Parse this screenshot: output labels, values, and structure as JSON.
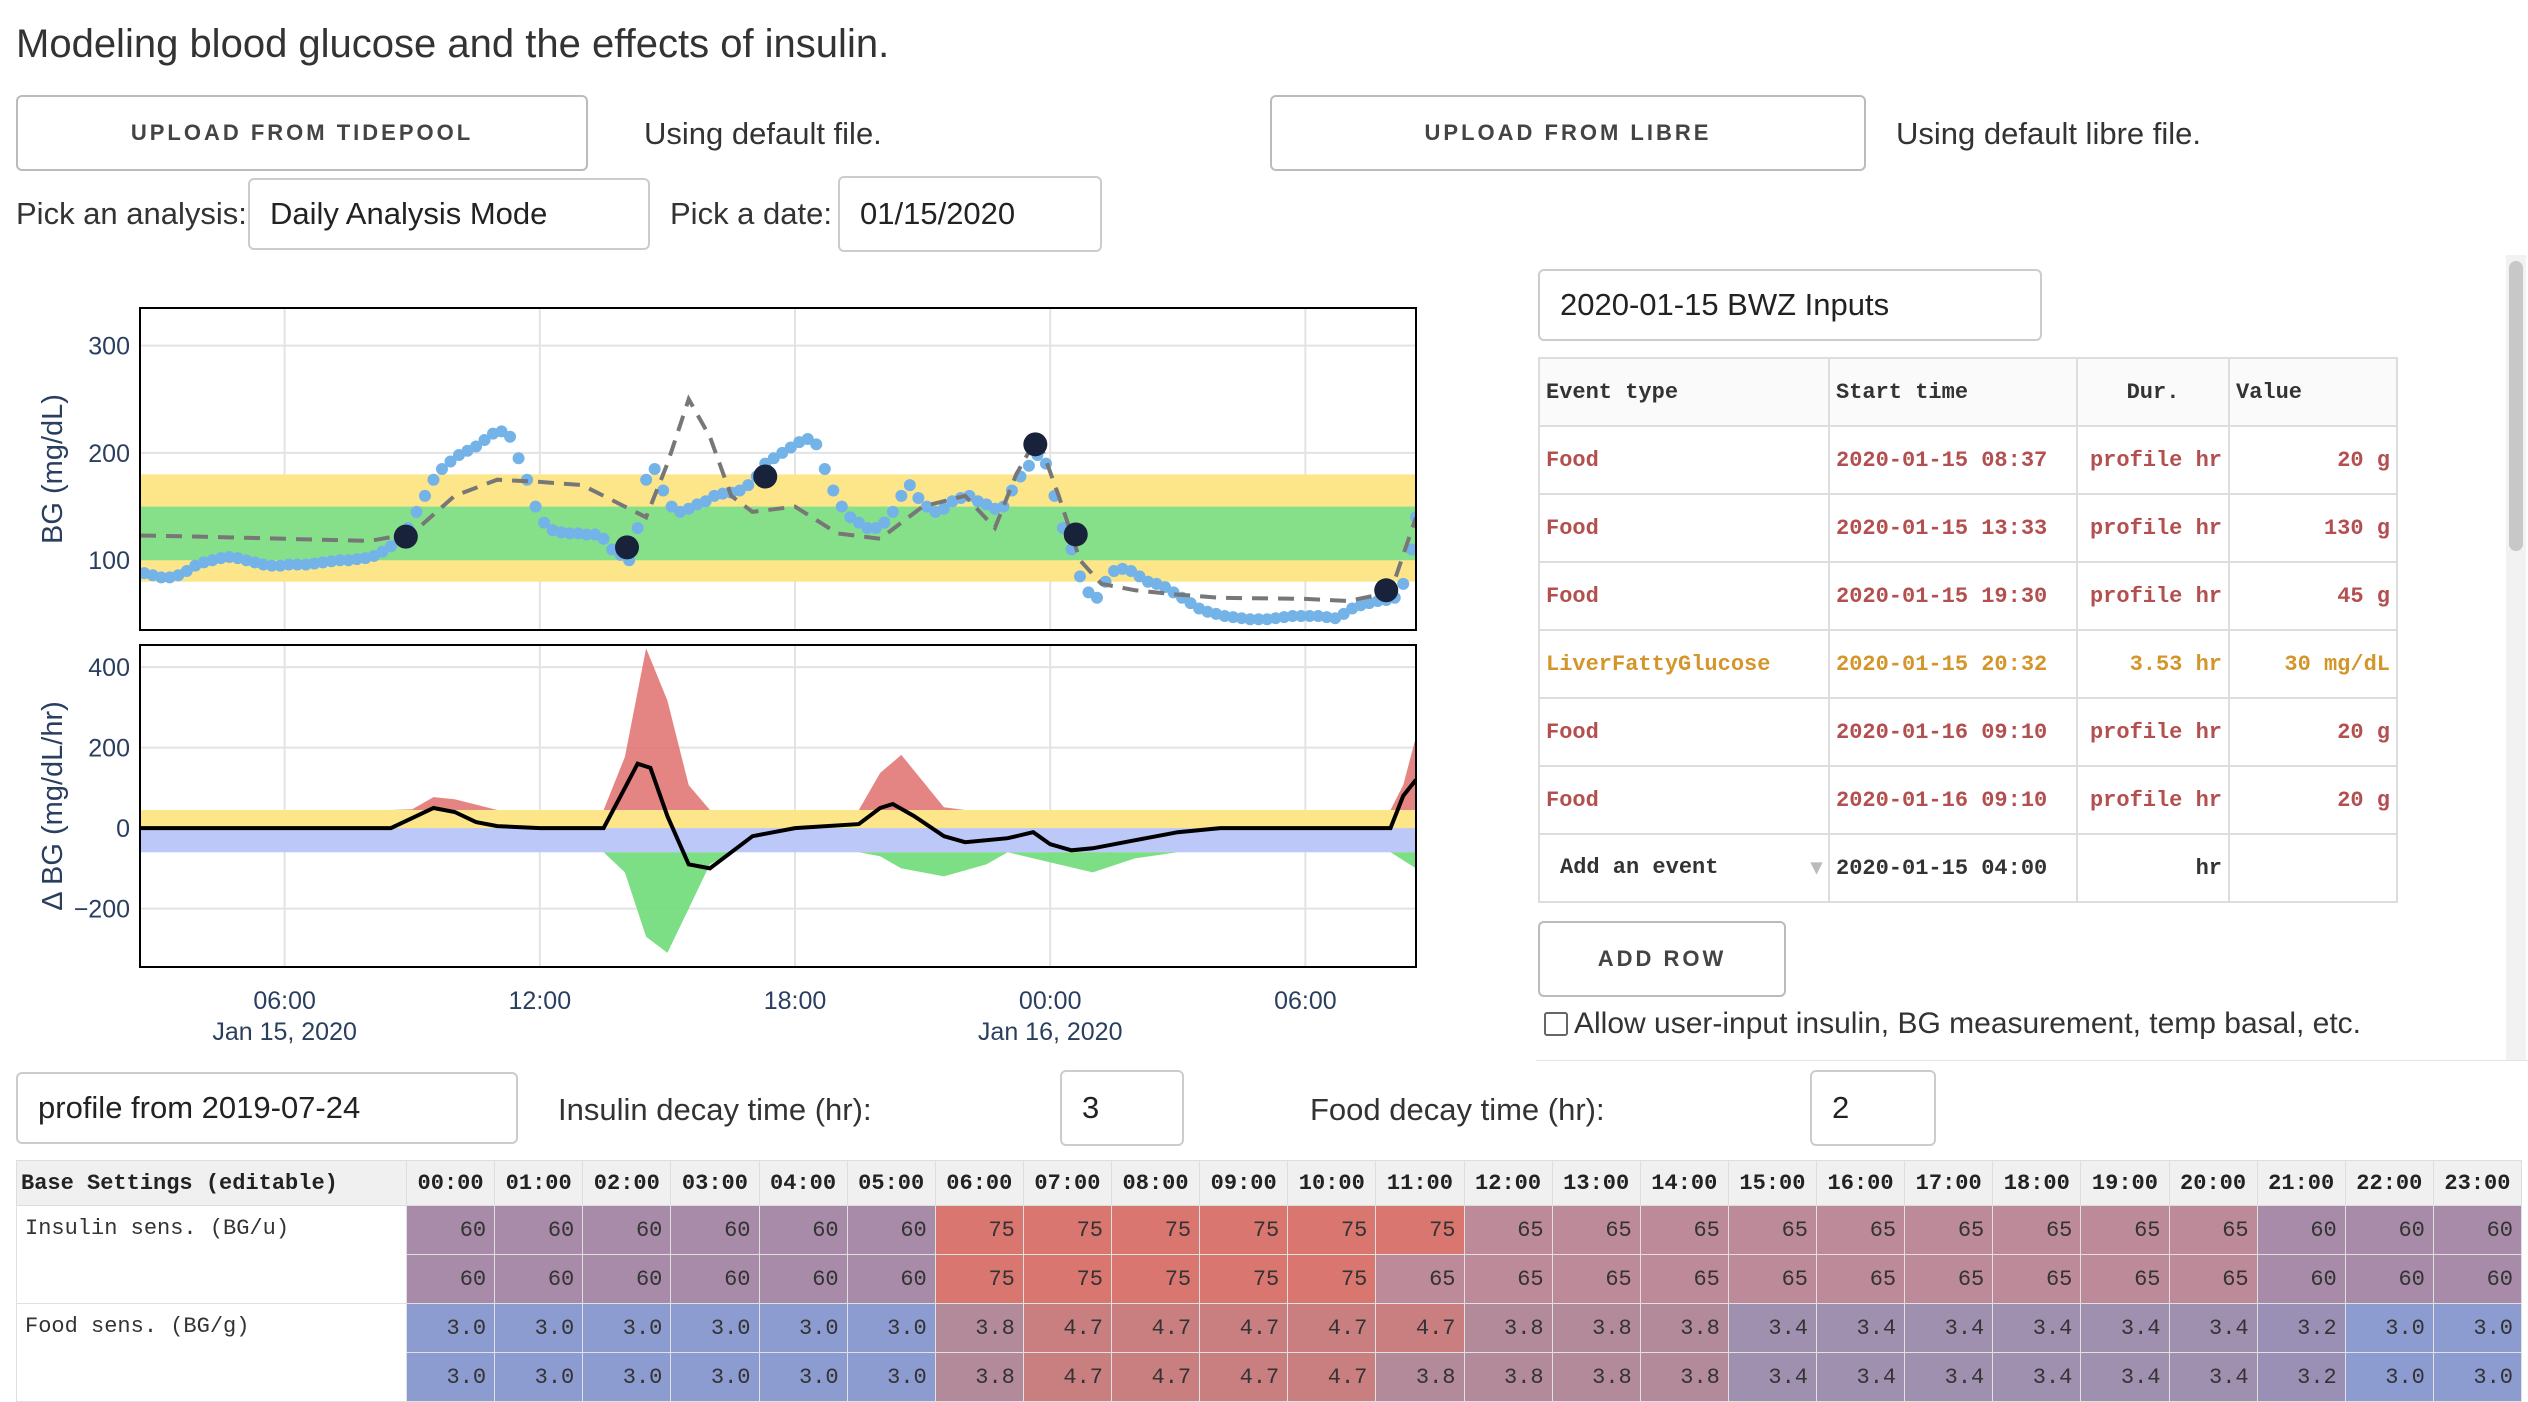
{
  "title": "Modeling blood glucose and the effects of insulin.",
  "upload_tidepool": "UPLOAD FROM TIDEPOOL",
  "tidepool_status": "Using default file.",
  "upload_libre": "UPLOAD FROM LIBRE",
  "libre_status": "Using default libre file.",
  "analysis_label": "Pick an analysis:",
  "analysis_value": "Daily Analysis Mode",
  "date_label": "Pick a date:",
  "date_value": "01/15/2020",
  "bwz_select": "2020-01-15 BWZ Inputs",
  "events": {
    "headers": [
      "Event type",
      "Start time",
      "Dur.",
      "Value"
    ],
    "rows": [
      {
        "type": "Food",
        "start": "2020-01-15 08:37",
        "dur": "profile hr",
        "value": "20 g",
        "kind": "food"
      },
      {
        "type": "Food",
        "start": "2020-01-15 13:33",
        "dur": "profile hr",
        "value": "130 g",
        "kind": "food"
      },
      {
        "type": "Food",
        "start": "2020-01-15 19:30",
        "dur": "profile hr",
        "value": "45 g",
        "kind": "food"
      },
      {
        "type": "LiverFattyGlucose",
        "start": "2020-01-15 20:32",
        "dur": "3.53 hr",
        "value": "30 mg/dL",
        "kind": "liver"
      },
      {
        "type": "Food",
        "start": "2020-01-16 09:10",
        "dur": "profile hr",
        "value": "20 g",
        "kind": "food"
      },
      {
        "type": "Food",
        "start": "2020-01-16 09:10",
        "dur": "profile hr",
        "value": "20 g",
        "kind": "food"
      }
    ],
    "add_event": "Add an event",
    "add_start": "2020-01-15 04:00",
    "add_dur": "hr"
  },
  "add_row": "ADD ROW",
  "allow_checkbox": "Allow user-input insulin, BG measurement, temp basal, etc.",
  "profile_value": "profile from 2019-07-24",
  "insulin_decay_label": "Insulin decay time (hr):",
  "insulin_decay_value": "3",
  "food_decay_label": "Food decay time (hr):",
  "food_decay_value": "2",
  "base_settings": {
    "header": "Base Settings (editable)",
    "hours": [
      "00:00",
      "01:00",
      "02:00",
      "03:00",
      "04:00",
      "05:00",
      "06:00",
      "07:00",
      "08:00",
      "09:00",
      "10:00",
      "11:00",
      "12:00",
      "13:00",
      "14:00",
      "15:00",
      "16:00",
      "17:00",
      "18:00",
      "19:00",
      "20:00",
      "21:00",
      "22:00",
      "23:00"
    ],
    "rows": [
      {
        "label": "Insulin sens. (BG/u)",
        "kind": "ins",
        "values": [
          "60",
          "60",
          "60",
          "60",
          "60",
          "60",
          "75",
          "75",
          "75",
          "75",
          "75",
          "75",
          "65",
          "65",
          "65",
          "65",
          "65",
          "65",
          "65",
          "65",
          "65",
          "60",
          "60",
          "60"
        ],
        "values2": [
          "60",
          "60",
          "60",
          "60",
          "60",
          "60",
          "75",
          "75",
          "75",
          "75",
          "75",
          "65",
          "65",
          "65",
          "65",
          "65",
          "65",
          "65",
          "65",
          "65",
          "65",
          "60",
          "60",
          "60"
        ]
      },
      {
        "label": "Food sens. (BG/g)",
        "kind": "food",
        "values": [
          "3.0",
          "3.0",
          "3.0",
          "3.0",
          "3.0",
          "3.0",
          "3.8",
          "4.7",
          "4.7",
          "4.7",
          "4.7",
          "4.7",
          "3.8",
          "3.8",
          "3.8",
          "3.4",
          "3.4",
          "3.4",
          "3.4",
          "3.4",
          "3.4",
          "3.2",
          "3.0",
          "3.0"
        ],
        "values2": [
          "3.0",
          "3.0",
          "3.0",
          "3.0",
          "3.0",
          "3.0",
          "3.8",
          "4.7",
          "4.7",
          "4.7",
          "4.7",
          "3.8",
          "3.8",
          "3.8",
          "3.8",
          "3.4",
          "3.4",
          "3.4",
          "3.4",
          "3.4",
          "3.4",
          "3.2",
          "3.0",
          "3.0"
        ]
      }
    ]
  },
  "chart_data": [
    {
      "type": "scatter",
      "ylabel": "BG (mg/dL)",
      "yticks": [
        100,
        200,
        300
      ],
      "ylim": [
        35,
        335
      ],
      "xlim_hours": [
        2.6,
        32.6
      ],
      "bands": [
        {
          "from": 80,
          "to": 180,
          "color": "#fde68a"
        },
        {
          "from": 100,
          "to": 150,
          "color": "#86e08a"
        }
      ],
      "measured_points": [
        [
          2.7,
          88
        ],
        [
          2.9,
          86
        ],
        [
          3.1,
          84
        ],
        [
          3.3,
          84
        ],
        [
          3.5,
          86
        ],
        [
          3.7,
          90
        ],
        [
          3.9,
          95
        ],
        [
          4.1,
          98
        ],
        [
          4.3,
          100
        ],
        [
          4.5,
          102
        ],
        [
          4.7,
          103
        ],
        [
          4.9,
          102
        ],
        [
          5.1,
          100
        ],
        [
          5.3,
          98
        ],
        [
          5.5,
          96
        ],
        [
          5.7,
          95
        ],
        [
          5.9,
          95
        ],
        [
          6.1,
          96
        ],
        [
          6.3,
          96
        ],
        [
          6.5,
          96
        ],
        [
          6.7,
          97
        ],
        [
          6.9,
          98
        ],
        [
          7.1,
          99
        ],
        [
          7.3,
          100
        ],
        [
          7.5,
          100
        ],
        [
          7.7,
          101
        ],
        [
          7.9,
          102
        ],
        [
          8.1,
          104
        ],
        [
          8.3,
          108
        ],
        [
          8.5,
          113
        ],
        [
          8.7,
          120
        ],
        [
          8.9,
          130
        ],
        [
          9.1,
          145
        ],
        [
          9.3,
          160
        ],
        [
          9.5,
          175
        ],
        [
          9.7,
          185
        ],
        [
          9.9,
          192
        ],
        [
          10.1,
          198
        ],
        [
          10.3,
          202
        ],
        [
          10.5,
          206
        ],
        [
          10.7,
          212
        ],
        [
          10.9,
          218
        ],
        [
          11.1,
          220
        ],
        [
          11.3,
          215
        ],
        [
          11.5,
          195
        ],
        [
          11.7,
          175
        ],
        [
          11.9,
          150
        ],
        [
          12.1,
          135
        ],
        [
          12.3,
          128
        ],
        [
          12.5,
          126
        ],
        [
          12.7,
          125
        ],
        [
          12.9,
          125
        ],
        [
          13.1,
          124
        ],
        [
          13.3,
          124
        ],
        [
          13.5,
          120
        ],
        [
          13.7,
          110
        ],
        [
          13.9,
          105
        ],
        [
          14.1,
          100
        ],
        [
          14.3,
          130
        ],
        [
          14.5,
          175
        ],
        [
          14.7,
          185
        ],
        [
          14.9,
          165
        ],
        [
          15.1,
          150
        ],
        [
          15.3,
          145
        ],
        [
          15.5,
          148
        ],
        [
          15.7,
          152
        ],
        [
          15.9,
          155
        ],
        [
          16.1,
          160
        ],
        [
          16.3,
          162
        ],
        [
          16.5,
          163
        ],
        [
          16.7,
          165
        ],
        [
          16.9,
          170
        ],
        [
          17.1,
          178
        ],
        [
          17.3,
          190
        ],
        [
          17.5,
          195
        ],
        [
          17.7,
          200
        ],
        [
          17.9,
          205
        ],
        [
          18.1,
          210
        ],
        [
          18.3,
          213
        ],
        [
          18.5,
          208
        ],
        [
          18.7,
          185
        ],
        [
          18.9,
          165
        ],
        [
          19.1,
          150
        ],
        [
          19.3,
          140
        ],
        [
          19.5,
          135
        ],
        [
          19.7,
          130
        ],
        [
          19.9,
          130
        ],
        [
          20.1,
          135
        ],
        [
          20.3,
          145
        ],
        [
          20.5,
          160
        ],
        [
          20.7,
          170
        ],
        [
          20.9,
          158
        ],
        [
          21.1,
          150
        ],
        [
          21.3,
          145
        ],
        [
          21.5,
          148
        ],
        [
          21.7,
          155
        ],
        [
          21.9,
          158
        ],
        [
          22.1,
          160
        ],
        [
          22.3,
          155
        ],
        [
          22.5,
          152
        ],
        [
          22.7,
          148
        ],
        [
          22.9,
          150
        ],
        [
          23.1,
          165
        ],
        [
          23.3,
          178
        ],
        [
          23.5,
          188
        ],
        [
          23.7,
          198
        ],
        [
          23.9,
          190
        ],
        [
          24.1,
          160
        ],
        [
          24.3,
          130
        ],
        [
          24.5,
          110
        ],
        [
          24.7,
          85
        ],
        [
          24.9,
          70
        ],
        [
          25.1,
          65
        ],
        [
          25.3,
          80
        ],
        [
          25.5,
          90
        ],
        [
          25.7,
          92
        ],
        [
          25.9,
          90
        ],
        [
          26.1,
          85
        ],
        [
          26.3,
          80
        ],
        [
          26.5,
          78
        ],
        [
          26.7,
          75
        ],
        [
          26.9,
          70
        ],
        [
          27.1,
          65
        ],
        [
          27.3,
          60
        ],
        [
          27.5,
          55
        ],
        [
          27.7,
          52
        ],
        [
          27.9,
          50
        ],
        [
          28.1,
          48
        ],
        [
          28.3,
          47
        ],
        [
          28.5,
          46
        ],
        [
          28.7,
          45
        ],
        [
          28.9,
          45
        ],
        [
          29.1,
          45
        ],
        [
          29.3,
          46
        ],
        [
          29.5,
          47
        ],
        [
          29.7,
          48
        ],
        [
          29.9,
          48
        ],
        [
          30.1,
          48
        ],
        [
          30.3,
          48
        ],
        [
          30.5,
          47
        ],
        [
          30.7,
          46
        ],
        [
          30.9,
          50
        ],
        [
          31.1,
          55
        ],
        [
          31.3,
          58
        ],
        [
          31.5,
          60
        ],
        [
          31.7,
          62
        ],
        [
          31.9,
          63
        ],
        [
          32.1,
          65
        ],
        [
          32.3,
          78
        ],
        [
          32.5,
          110
        ],
        [
          32.6,
          140
        ]
      ],
      "prediction_line": [
        [
          2.6,
          123
        ],
        [
          4,
          122
        ],
        [
          6,
          120
        ],
        [
          8,
          118
        ],
        [
          9,
          125
        ],
        [
          10,
          160
        ],
        [
          11,
          175
        ],
        [
          12,
          173
        ],
        [
          13,
          170
        ],
        [
          14,
          150
        ],
        [
          14.5,
          140
        ],
        [
          15,
          190
        ],
        [
          15.5,
          250
        ],
        [
          16,
          215
        ],
        [
          16.5,
          160
        ],
        [
          17,
          145
        ],
        [
          18,
          150
        ],
        [
          19,
          125
        ],
        [
          20,
          120
        ],
        [
          21,
          150
        ],
        [
          22,
          160
        ],
        [
          22.7,
          130
        ],
        [
          23.2,
          180
        ],
        [
          23.7,
          215
        ],
        [
          24.2,
          160
        ],
        [
          24.7,
          100
        ],
        [
          25.2,
          78
        ],
        [
          26,
          72
        ],
        [
          27,
          68
        ],
        [
          28,
          65
        ],
        [
          30,
          64
        ],
        [
          31,
          62
        ],
        [
          32,
          70
        ],
        [
          32.6,
          140
        ]
      ],
      "markers": [
        [
          8.85,
          122
        ],
        [
          14.05,
          112
        ],
        [
          17.3,
          178
        ],
        [
          23.65,
          208
        ],
        [
          24.6,
          124
        ],
        [
          31.9,
          72
        ]
      ]
    },
    {
      "type": "area",
      "ylabel": "Δ BG (mg/dL/hr)",
      "yticks": [
        -200,
        0,
        200,
        400
      ],
      "ylim": [
        -345,
        455
      ],
      "xlim_hours": [
        2.6,
        32.6
      ],
      "xticks": [
        {
          "h": 6,
          "label": "06:00",
          "sub": "Jan 15, 2020"
        },
        {
          "h": 12,
          "label": "12:00",
          "sub": ""
        },
        {
          "h": 18,
          "label": "18:00",
          "sub": ""
        },
        {
          "h": 24,
          "label": "00:00",
          "sub": "Jan 16, 2020"
        },
        {
          "h": 30,
          "label": "06:00",
          "sub": ""
        }
      ],
      "food_effect": [
        [
          2.6,
          0
        ],
        [
          8.5,
          0
        ],
        [
          9.0,
          20
        ],
        [
          9.5,
          50
        ],
        [
          10,
          45
        ],
        [
          11,
          10
        ],
        [
          12,
          0
        ],
        [
          13.5,
          0
        ],
        [
          14,
          150
        ],
        [
          14.5,
          420
        ],
        [
          15,
          290
        ],
        [
          15.5,
          80
        ],
        [
          16,
          10
        ],
        [
          17,
          0
        ],
        [
          19.5,
          0
        ],
        [
          20,
          110
        ],
        [
          20.5,
          155
        ],
        [
          21,
          90
        ],
        [
          21.5,
          25
        ],
        [
          22,
          0
        ],
        [
          32,
          0
        ],
        [
          32.3,
          80
        ],
        [
          32.6,
          200
        ]
      ],
      "insulin_effect": [
        [
          2.6,
          0
        ],
        [
          8.5,
          0
        ],
        [
          9.0,
          -5
        ],
        [
          9.5,
          -10
        ],
        [
          10,
          -20
        ],
        [
          11,
          -10
        ],
        [
          12,
          0
        ],
        [
          13.5,
          0
        ],
        [
          14,
          -80
        ],
        [
          14.5,
          -240
        ],
        [
          15,
          -280
        ],
        [
          15.5,
          -170
        ],
        [
          16,
          -60
        ],
        [
          16.5,
          -20
        ],
        [
          17,
          0
        ],
        [
          19.5,
          0
        ],
        [
          20,
          -40
        ],
        [
          20.5,
          -70
        ],
        [
          21.5,
          -90
        ],
        [
          22.5,
          -60
        ],
        [
          23,
          -30
        ],
        [
          24,
          -55
        ],
        [
          25,
          -80
        ],
        [
          26,
          -45
        ],
        [
          27,
          -15
        ],
        [
          28,
          0
        ],
        [
          32,
          -30
        ],
        [
          32.6,
          -70
        ]
      ],
      "basal_band_upper": 45,
      "basal_band_lower": -60,
      "net_line": [
        [
          2.6,
          0
        ],
        [
          8.5,
          0
        ],
        [
          9.0,
          25
        ],
        [
          9.5,
          50
        ],
        [
          10,
          40
        ],
        [
          10.5,
          15
        ],
        [
          11,
          5
        ],
        [
          12,
          0
        ],
        [
          13.5,
          0
        ],
        [
          14,
          100
        ],
        [
          14.3,
          160
        ],
        [
          14.6,
          150
        ],
        [
          15,
          30
        ],
        [
          15.5,
          -90
        ],
        [
          16,
          -100
        ],
        [
          16.5,
          -60
        ],
        [
          17,
          -20
        ],
        [
          18,
          0
        ],
        [
          19.5,
          10
        ],
        [
          20,
          50
        ],
        [
          20.3,
          60
        ],
        [
          20.8,
          30
        ],
        [
          21.5,
          -20
        ],
        [
          22,
          -35
        ],
        [
          23,
          -25
        ],
        [
          23.6,
          -10
        ],
        [
          24,
          -40
        ],
        [
          24.5,
          -55
        ],
        [
          25,
          -50
        ],
        [
          26,
          -30
        ],
        [
          27,
          -10
        ],
        [
          28,
          0
        ],
        [
          32,
          0
        ],
        [
          32.3,
          80
        ],
        [
          32.6,
          120
        ]
      ]
    }
  ]
}
